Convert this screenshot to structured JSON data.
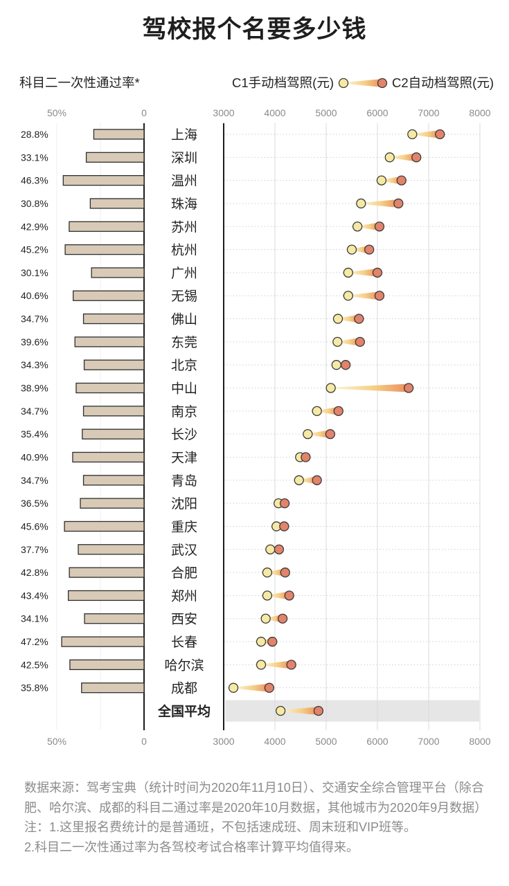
{
  "chart_data": {
    "type": "scatter",
    "title": "驾校报个名要多少钱",
    "categories": [
      "上海",
      "深圳",
      "温州",
      "珠海",
      "苏州",
      "杭州",
      "广州",
      "无锡",
      "佛山",
      "东莞",
      "北京",
      "中山",
      "南京",
      "长沙",
      "天津",
      "青岛",
      "沈阳",
      "重庆",
      "武汉",
      "合肥",
      "郑州",
      "西安",
      "长春",
      "哈尔滨",
      "成都",
      "全国平均"
    ],
    "series": [
      {
        "name": "科目二一次性通过率*",
        "type": "bar",
        "orientation": "horizontal",
        "values": [
          28.8,
          33.1,
          46.3,
          30.8,
          42.9,
          45.2,
          30.1,
          40.6,
          34.7,
          39.6,
          34.3,
          38.9,
          34.7,
          35.4,
          40.9,
          34.7,
          36.5,
          45.6,
          37.7,
          42.8,
          43.4,
          34.1,
          47.2,
          42.5,
          35.8,
          null
        ],
        "labels": [
          "28.8%",
          "33.1%",
          "46.3%",
          "30.8%",
          "42.9%",
          "45.2%",
          "30.1%",
          "40.6%",
          "34.7%",
          "39.6%",
          "34.3%",
          "38.9%",
          "34.7%",
          "35.4%",
          "40.9%",
          "34.7%",
          "36.5%",
          "45.6%",
          "37.7%",
          "42.8%",
          "43.4%",
          "34.1%",
          "47.2%",
          "42.5%",
          "35.8%",
          ""
        ]
      },
      {
        "name": "C1手动档驾照(元)",
        "type": "scatter",
        "values": [
          6680,
          6240,
          6080,
          5680,
          5610,
          5500,
          5430,
          5430,
          5230,
          5220,
          5200,
          5090,
          4820,
          4640,
          4490,
          4470,
          4070,
          4030,
          3910,
          3850,
          3850,
          3820,
          3730,
          3730,
          3190,
          4110
        ]
      },
      {
        "name": "C2自动档驾照(元)",
        "type": "scatter",
        "values": [
          7220,
          6760,
          6470,
          6410,
          6040,
          5840,
          6000,
          6040,
          5640,
          5660,
          5380,
          6610,
          5240,
          5080,
          4600,
          4820,
          4190,
          4180,
          4080,
          4200,
          4280,
          4150,
          3950,
          4320,
          3890,
          4850
        ]
      }
    ],
    "axes": {
      "pass_rate": {
        "range": [
          50,
          0
        ],
        "ticks": [
          50,
          0
        ],
        "tick_labels": [
          "50%",
          "0"
        ]
      },
      "price": {
        "range": [
          3000,
          8000
        ],
        "ticks": [
          3000,
          4000,
          5000,
          6000,
          7000,
          8000
        ],
        "tick_labels": [
          "3000",
          "4000",
          "5000",
          "6000",
          "7000",
          "8000"
        ]
      }
    },
    "highlight_index": 25,
    "grid": true,
    "legend": "top-right"
  },
  "colors": {
    "bar": "#d8cab6",
    "bar_outline": "#2e2e2e",
    "c1": "#f6e9a4",
    "c2": "#e2836b",
    "marker_outline": "#3a3a3a",
    "connector_start": "#fdf6d6",
    "connector_mid": "#f5cf86",
    "connector_end": "#ec8c5e",
    "highlight_band": "#e6e6e6",
    "axis": "#1c1c1c",
    "grid": "#dadada",
    "row_guide": "#cfcfcf",
    "tick_text": "#8a8a8a",
    "label_text": "#222222"
  },
  "footer": {
    "source": "数据来源：驾考宝典（统计时间为2020年11月10日）、交通安全综合管理平台（除合肥、哈尔滨、成都的科目二通过率是2020年10月数据，其他城市为2020年9月数据）",
    "note_1": "注：1.这里报名费统计的是普通班，不包括速成班、周末班和VIP班等。",
    "note_2": "2.科目二一次性通过率为各驾校考试合格率计算平均值得来。"
  }
}
